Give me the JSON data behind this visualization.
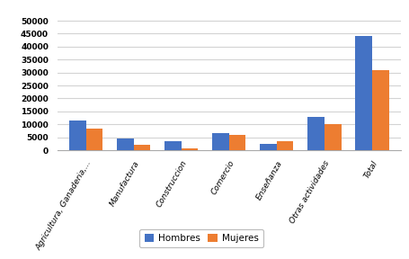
{
  "categories": [
    "Agricultura, Ganaderia,...",
    "Manufactura",
    "Construccion",
    "Comercio",
    "Enseñanza",
    "Otras actividades",
    "Total"
  ],
  "hombres": [
    11500,
    4700,
    3500,
    6500,
    2500,
    13000,
    44000
  ],
  "mujeres": [
    8500,
    2000,
    700,
    5800,
    3500,
    10000,
    31000
  ],
  "hombres_color": "#4472C4",
  "mujeres_color": "#ED7D31",
  "ylim": [
    0,
    55000
  ],
  "yticks": [
    0,
    5000,
    10000,
    15000,
    20000,
    25000,
    30000,
    35000,
    40000,
    45000,
    50000
  ],
  "legend_labels": [
    "Hombres",
    "Mujeres"
  ],
  "background_color": "#FFFFFF",
  "grid_color": "#D3D3D3"
}
